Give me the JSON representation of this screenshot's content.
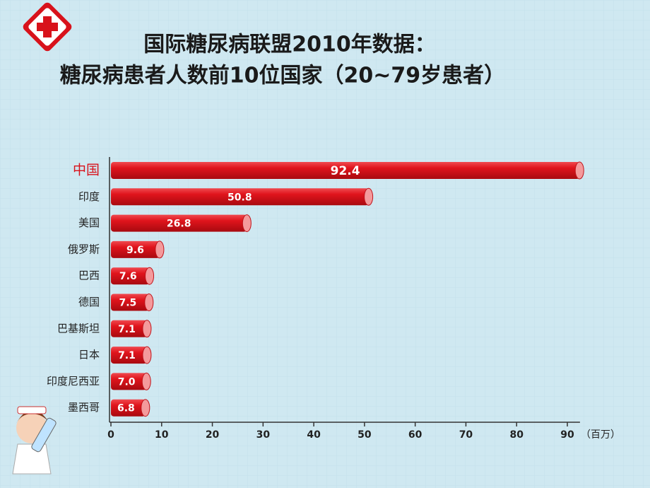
{
  "chart_data": {
    "type": "bar",
    "orientation": "horizontal",
    "title": "国际糖尿病联盟2010年数据：",
    "subtitle": "糖尿病患者人数前10位国家（20~79岁患者）",
    "x_label": "（百万）",
    "categories": [
      "中国",
      "印度",
      "美国",
      "俄罗斯",
      "巴西",
      "德国",
      "巴基斯坦",
      "日本",
      "印度尼西亚",
      "墨西哥"
    ],
    "values": [
      92.4,
      50.8,
      26.8,
      9.6,
      7.6,
      7.5,
      7.1,
      7.1,
      7.0,
      6.8
    ],
    "value_labels": [
      "92.4",
      "50.8",
      "26.8",
      "9.6",
      "7.6",
      "7.5",
      "7.1",
      "7.1",
      "7.0",
      "6.8"
    ],
    "color": "#e0141c",
    "xlim": [
      0,
      95
    ],
    "xticks": [
      0,
      10,
      20,
      30,
      40,
      50,
      60,
      70,
      80,
      90
    ]
  }
}
